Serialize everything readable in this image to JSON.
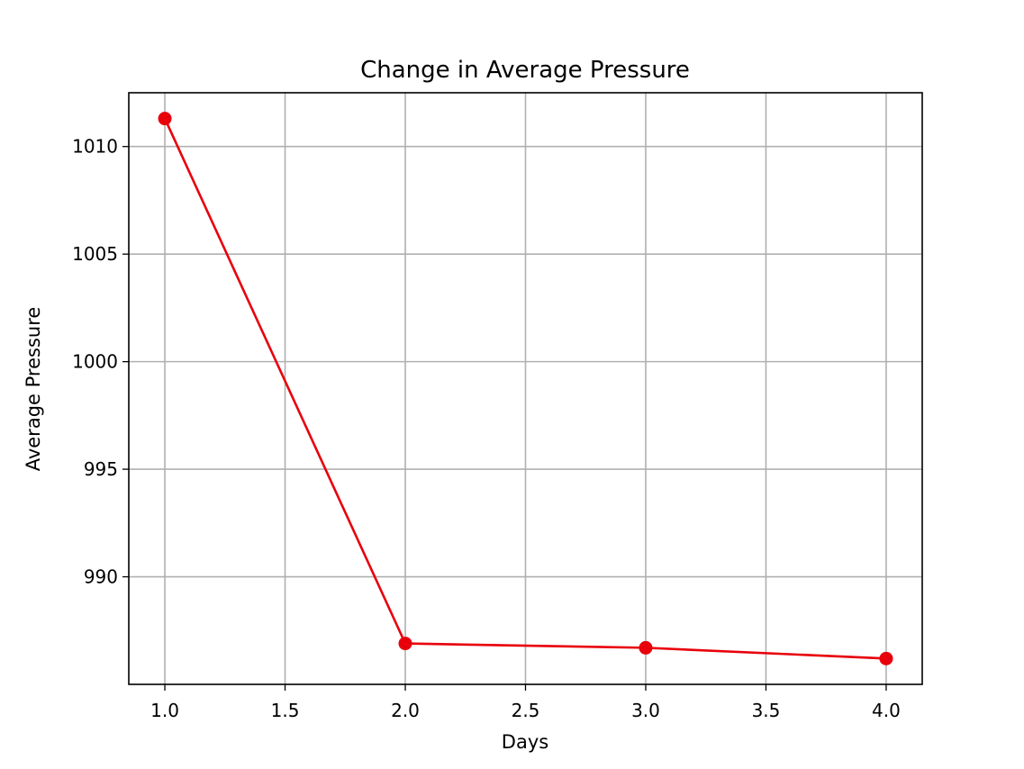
{
  "chart_data": {
    "type": "line",
    "title": "Change in Average Pressure",
    "xlabel": "Days",
    "ylabel": "Average Pressure",
    "x": [
      1.0,
      2.0,
      3.0,
      4.0
    ],
    "series": [
      {
        "values": [
          1011.3,
          986.9,
          986.7,
          986.2
        ],
        "color": "#e8000b"
      }
    ],
    "xlim": [
      0.85,
      4.15
    ],
    "ylim": [
      985.0,
      1012.5
    ],
    "xticks": [
      1.0,
      1.5,
      2.0,
      2.5,
      3.0,
      3.5,
      4.0
    ],
    "xtick_labels": [
      "1.0",
      "1.5",
      "2.0",
      "2.5",
      "3.0",
      "3.5",
      "4.0"
    ],
    "yticks": [
      990,
      995,
      1000,
      1005,
      1010
    ],
    "ytick_labels": [
      "990",
      "995",
      "1000",
      "1005",
      "1010"
    ],
    "grid": true,
    "markers": true
  }
}
